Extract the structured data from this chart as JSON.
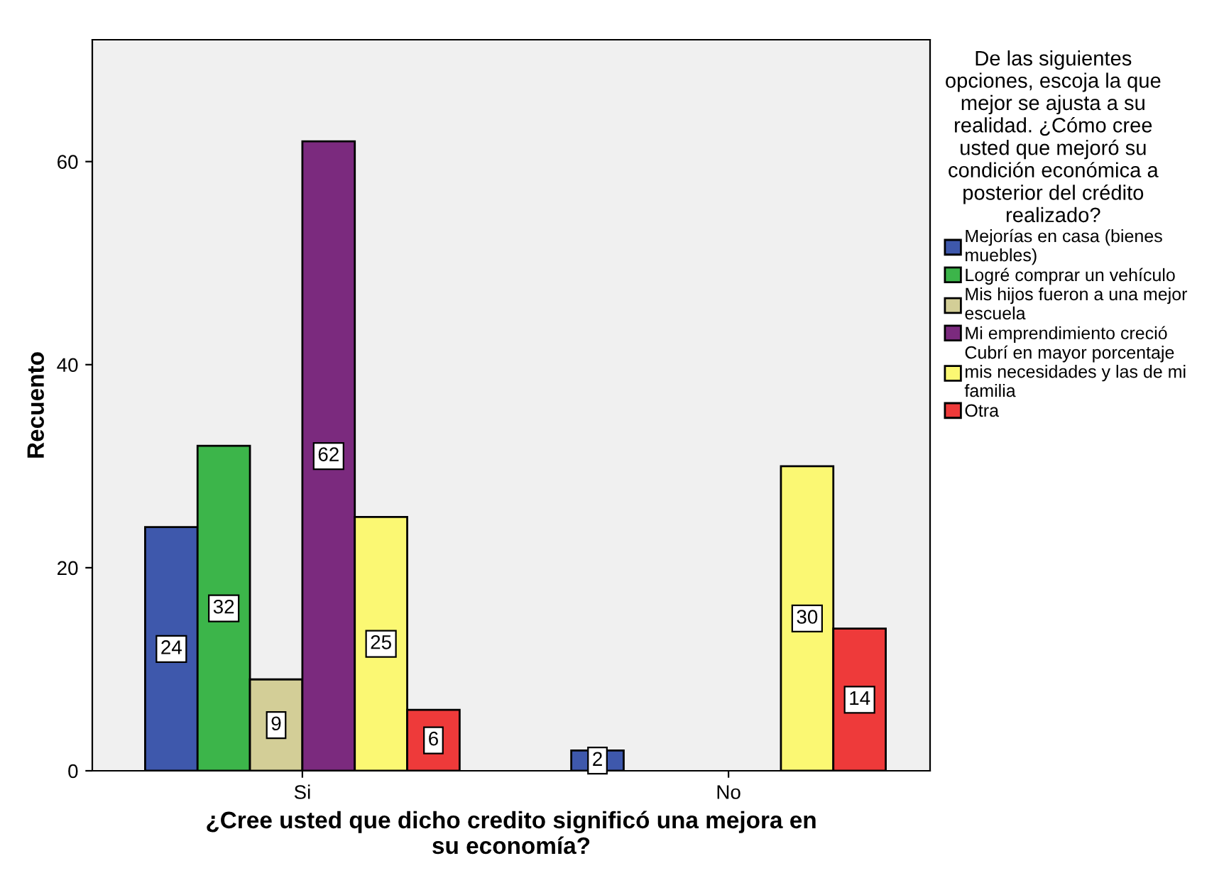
{
  "chart_data": {
    "type": "bar",
    "categories": [
      "Si",
      "No"
    ],
    "xlabel": "¿Cree usted que dicho credito significó una mejora en\nsu economía?",
    "ylabel": "Recuento",
    "legend_title": "De las siguientes\nopciones, escoja la que\nmejor se ajusta a su\nrealidad. ¿Cómo cree\nusted que mejoró su\ncondición económica a\nposterior del crédito\nrealizado?",
    "series": [
      {
        "name": "Mejorías en casa (bienes\nmuebles)",
        "color": "#3e58ac",
        "values": [
          24,
          2
        ]
      },
      {
        "name": "Logré comprar un vehículo",
        "color": "#3cb54a",
        "values": [
          32,
          null
        ]
      },
      {
        "name": "Mis hijos fueron a una mejor\nescuela",
        "color": "#d3ce97",
        "values": [
          9,
          null
        ]
      },
      {
        "name": "Mi emprendimiento creció",
        "color": "#7b2a7e",
        "values": [
          62,
          null
        ]
      },
      {
        "name": "Cubrí en mayor porcentaje\nmis necesidades y las de mi\nfamilia",
        "color": "#fbf873",
        "values": [
          25,
          30
        ]
      },
      {
        "name": "Otra",
        "color": "#ee3a3a",
        "values": [
          6,
          14
        ]
      }
    ],
    "ylim": [
      0,
      72
    ],
    "yticks": [
      0,
      20,
      40,
      60
    ],
    "grid": false,
    "legend": "right",
    "data_labels": true
  }
}
